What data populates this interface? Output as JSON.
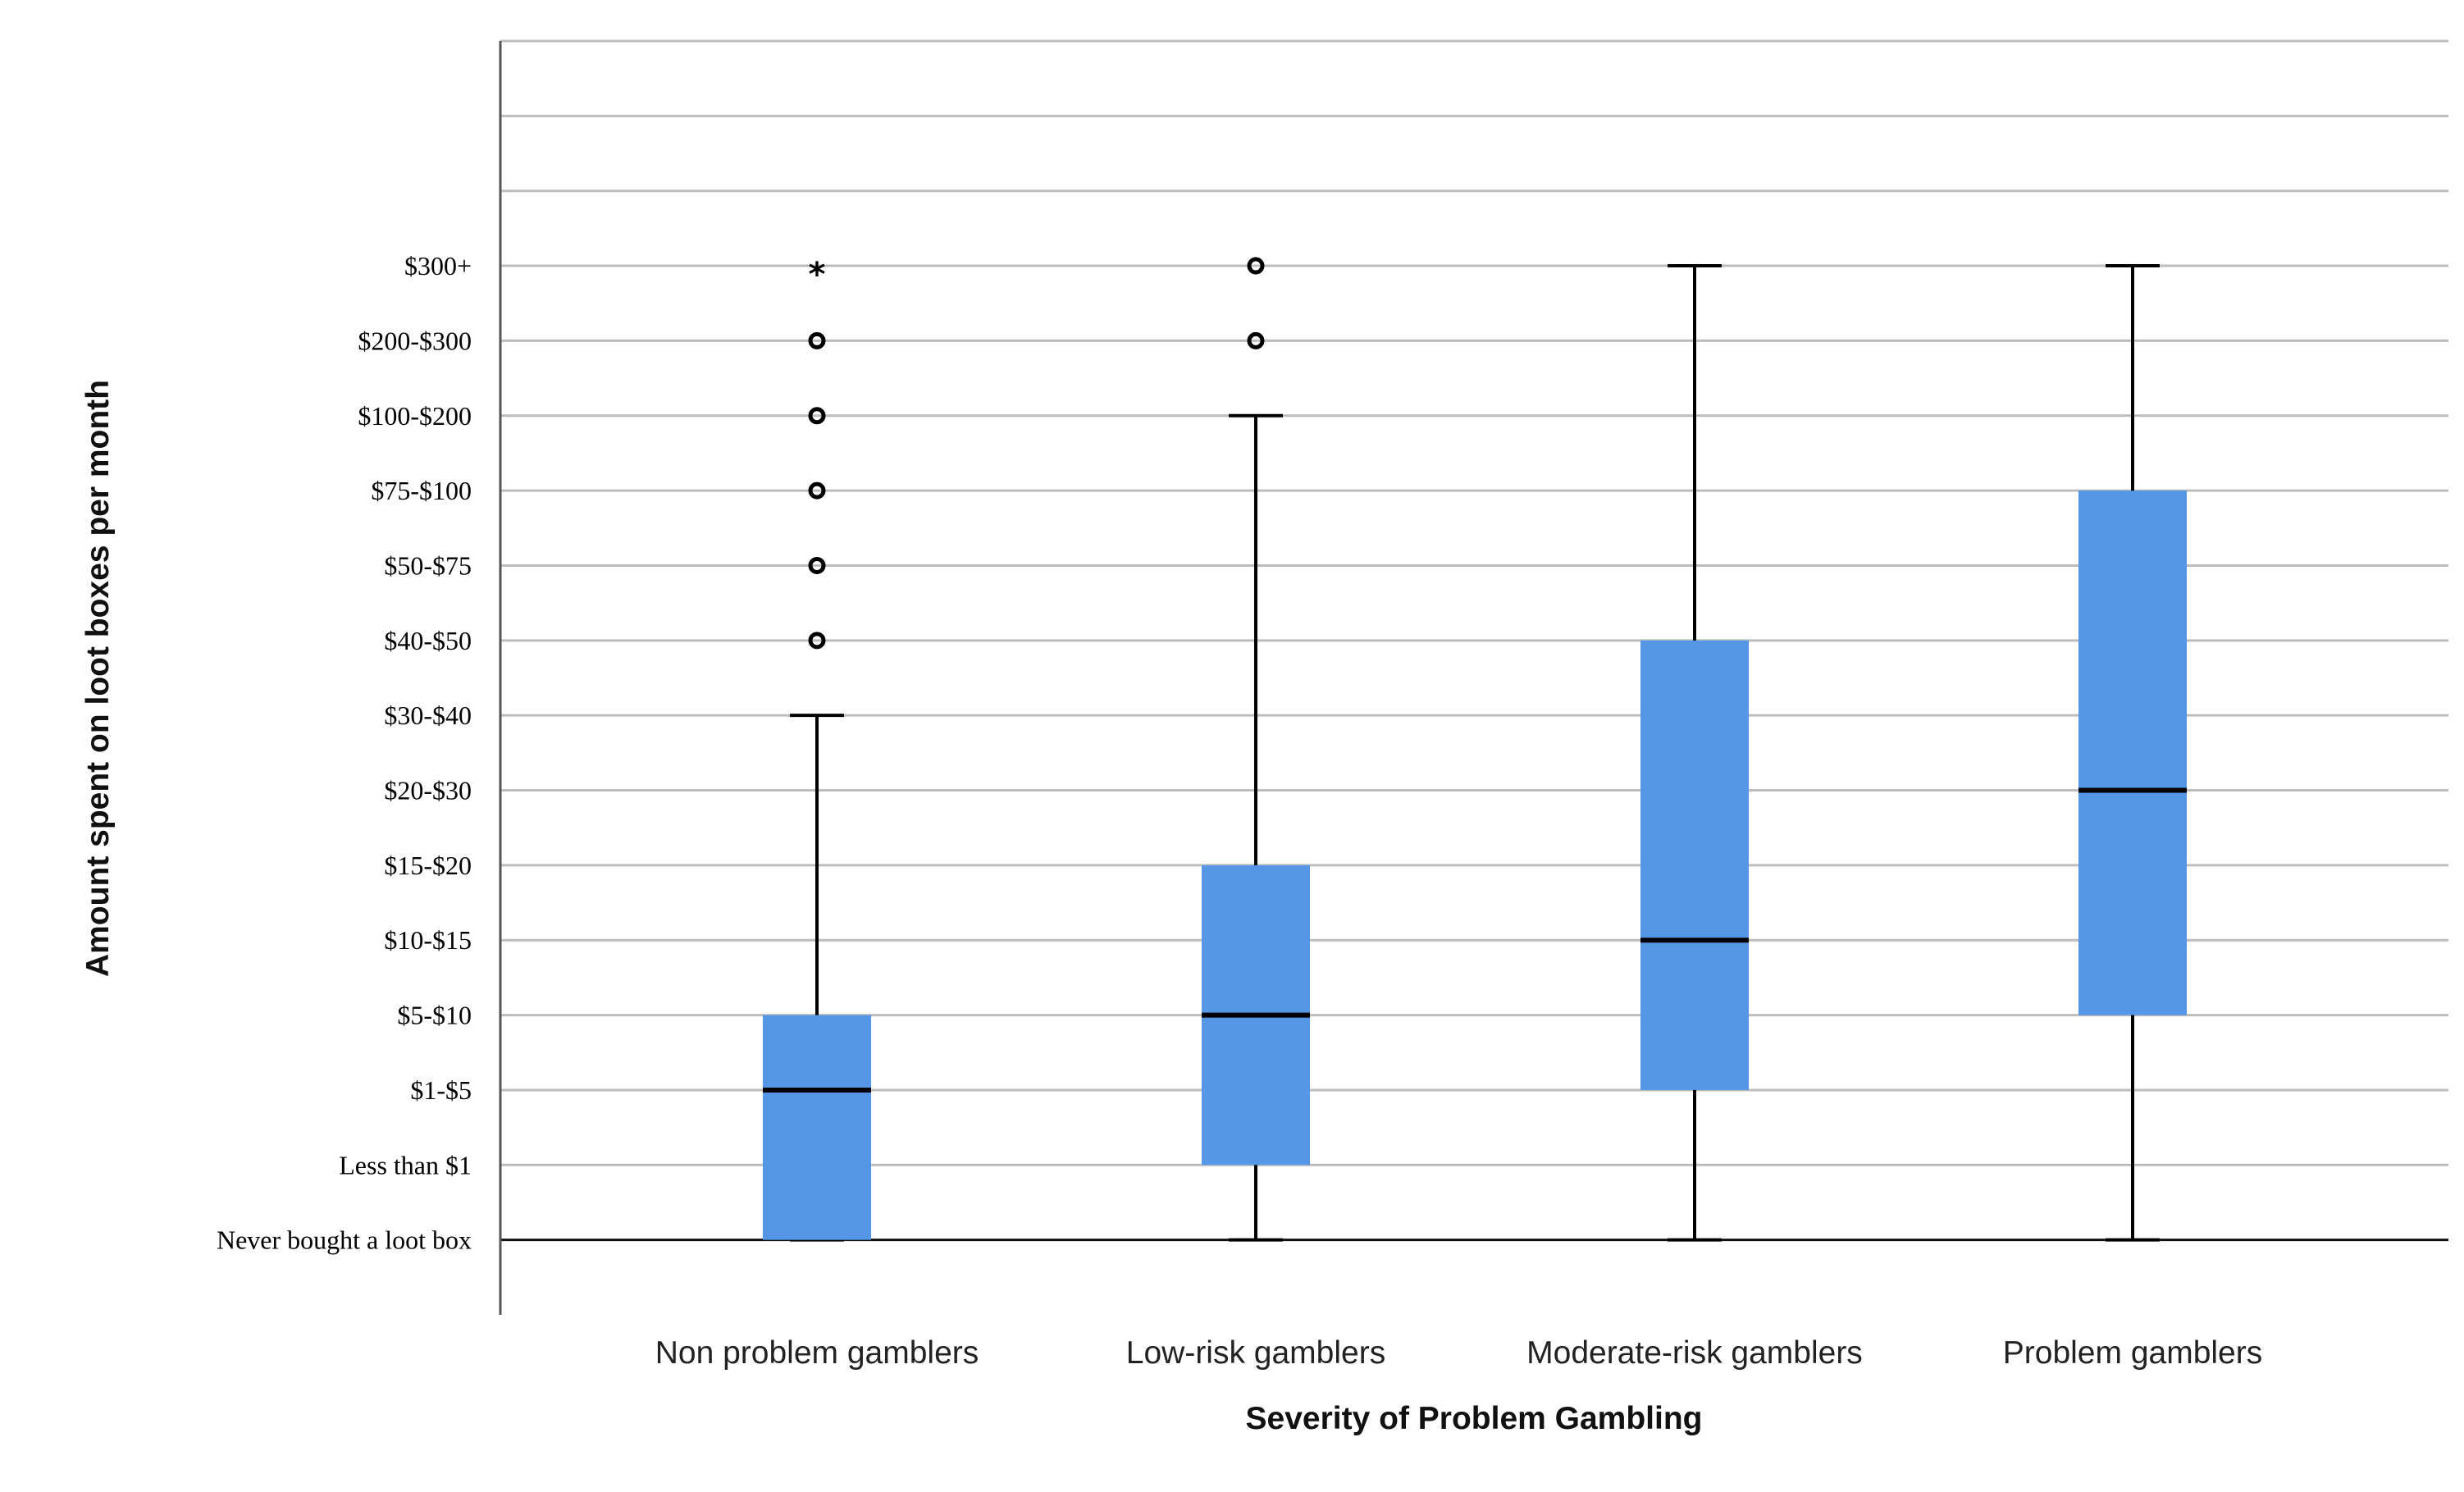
{
  "chart_data": {
    "type": "boxplot",
    "xlabel": "Severity of Problem Gambling",
    "ylabel": "Amount spent on loot boxes per month",
    "y_categories": [
      "Never bought a loot box",
      "Less than $1",
      "$1-$5",
      "$5-$10",
      "$10-$15",
      "$15-$20",
      "$20-$30",
      "$30-$40",
      "$40-$50",
      "$50-$75",
      "$75-$100",
      "$100-$200",
      "$200-$300",
      "$300+"
    ],
    "ylim": [
      -1,
      16
    ],
    "grid": true,
    "box_color": "#5596E6",
    "categories": [
      "Non problem gamblers",
      "Low-risk gamblers",
      "Moderate-risk gamblers",
      "Problem gamblers"
    ],
    "series": [
      {
        "category": "Non problem gamblers",
        "whisker_low": 0,
        "q1": 0,
        "median": 2,
        "q3": 3,
        "whisker_high": 7,
        "outliers": [
          8,
          9,
          10,
          11,
          12
        ],
        "extremes": [
          13
        ]
      },
      {
        "category": "Low-risk gamblers",
        "whisker_low": 0,
        "q1": 1,
        "median": 3,
        "q3": 5,
        "whisker_high": 11,
        "outliers": [
          12,
          13
        ],
        "extremes": []
      },
      {
        "category": "Moderate-risk gamblers",
        "whisker_low": 0,
        "q1": 2,
        "median": 4,
        "q3": 8,
        "whisker_high": 13,
        "outliers": [],
        "extremes": []
      },
      {
        "category": "Problem gamblers",
        "whisker_low": 0,
        "q1": 3,
        "median": 6,
        "q3": 10,
        "whisker_high": 13,
        "outliers": [],
        "extremes": []
      }
    ]
  }
}
